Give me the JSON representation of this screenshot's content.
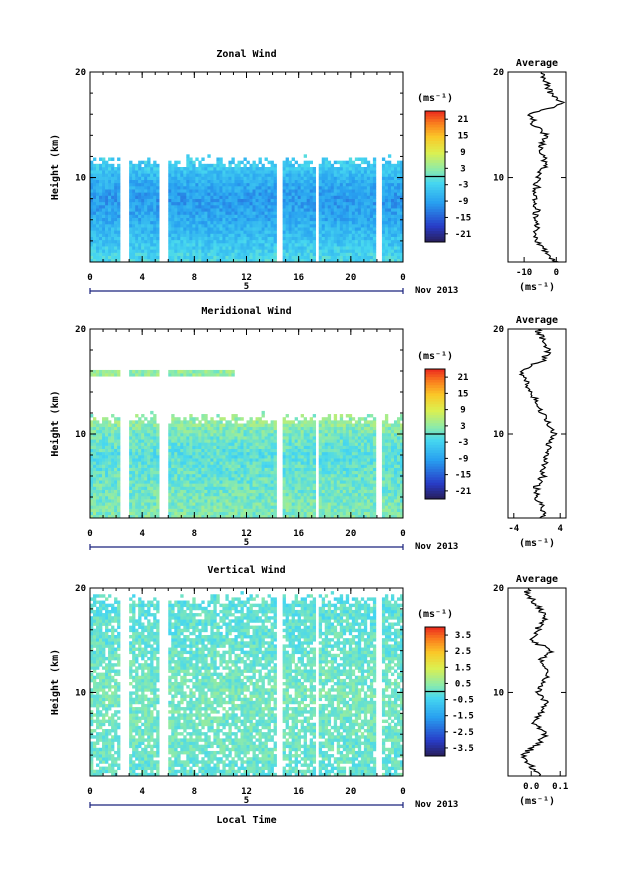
{
  "chart_data": [
    {
      "type": "heatmap",
      "title": "Zonal Wind",
      "ylabel": "Height (km)",
      "xlabel": "",
      "ylim": [
        2,
        20
      ],
      "xlim": [
        0,
        24
      ],
      "x_ticks": [
        "0",
        "4",
        "8",
        "12",
        "16",
        "20",
        "0"
      ],
      "y_ticks": [
        "10",
        "20"
      ],
      "date_label": "5",
      "month_label": "Nov 2013",
      "colorbar": {
        "unit": "(ms⁻¹)",
        "ticks": [
          "21",
          "15",
          "9",
          "3",
          "-3",
          "-9",
          "-15",
          "-21"
        ],
        "range": [
          -24,
          24
        ]
      },
      "data_gaps_hours": [
        [
          2.3,
          2.9
        ],
        [
          5.4,
          5.9
        ],
        [
          14.3,
          14.8
        ],
        [
          17.2,
          17.5
        ],
        [
          22.0,
          22.4
        ]
      ],
      "coverage_top_km": 11.5,
      "approx_field": {
        "height_km": [
          2,
          4,
          6,
          8,
          10,
          11
        ],
        "mean_value": [
          -2,
          -5,
          -8,
          -10,
          -7,
          -4
        ]
      },
      "profile": {
        "title": "Average",
        "x_ticks": [
          "-10",
          "0"
        ],
        "xlim": [
          -15,
          3
        ],
        "xlabel": "(ms⁻¹)",
        "y_ticks": [
          "10",
          "20"
        ],
        "height_km": [
          2,
          3,
          4,
          5,
          6,
          7,
          8,
          9,
          10,
          11,
          12,
          13,
          14,
          15,
          16,
          17,
          18,
          19,
          20
        ],
        "values": [
          0,
          -3,
          -6,
          -6,
          -7,
          -6,
          -7,
          -6,
          -6,
          -4,
          -4,
          -5,
          -3,
          -7,
          -8,
          2,
          -2,
          -3,
          -5
        ]
      }
    },
    {
      "type": "heatmap",
      "title": "Meridional Wind",
      "ylabel": "Height (km)",
      "xlabel": "",
      "ylim": [
        2,
        20
      ],
      "xlim": [
        0,
        24
      ],
      "x_ticks": [
        "0",
        "4",
        "8",
        "12",
        "16",
        "20",
        "0"
      ],
      "y_ticks": [
        "10",
        "20"
      ],
      "date_label": "5",
      "month_label": "Nov 2013",
      "colorbar": {
        "unit": "(ms⁻¹)",
        "ticks": [
          "21",
          "15",
          "9",
          "3",
          "-3",
          "-9",
          "-15",
          "-21"
        ],
        "range": [
          -24,
          24
        ]
      },
      "data_gaps_hours": [
        [
          2.3,
          2.9
        ],
        [
          5.4,
          5.9
        ],
        [
          14.3,
          14.8
        ],
        [
          17.2,
          17.5
        ],
        [
          22.0,
          22.4
        ]
      ],
      "coverage_top_km": 11.5,
      "approx_field": {
        "height_km": [
          2,
          4,
          6,
          8,
          10,
          11
        ],
        "mean_value": [
          2,
          1,
          0,
          -1,
          1,
          3
        ]
      },
      "profile": {
        "title": "Average",
        "x_ticks": [
          "-4",
          "4"
        ],
        "xlim": [
          -5,
          5
        ],
        "xlabel": "(ms⁻¹)",
        "y_ticks": [
          "10",
          "20"
        ],
        "height_km": [
          2,
          3,
          4,
          5,
          6,
          7,
          8,
          9,
          10,
          11,
          12,
          13,
          14,
          15,
          16,
          17,
          18,
          19,
          20
        ],
        "values": [
          1,
          1,
          0,
          0,
          1,
          1,
          2,
          2,
          3,
          2,
          1,
          0,
          -1,
          -2,
          -3,
          1,
          2,
          1,
          0
        ]
      }
    },
    {
      "type": "heatmap",
      "title": "Vertical Wind",
      "ylabel": "Height (km)",
      "xlabel": "Local Time",
      "ylim": [
        2,
        20
      ],
      "xlim": [
        0,
        24
      ],
      "x_ticks": [
        "0",
        "4",
        "8",
        "12",
        "16",
        "20",
        "0"
      ],
      "y_ticks": [
        "10",
        "20"
      ],
      "date_label": "5",
      "month_label": "Nov 2013",
      "colorbar": {
        "unit": "(ms⁻¹)",
        "ticks": [
          "3.5",
          "2.5",
          "1.5",
          "0.5",
          "-0.5",
          "-1.5",
          "-2.5",
          "-3.5"
        ],
        "range": [
          -4,
          4
        ]
      },
      "data_gaps_hours": [
        [
          2.3,
          2.9
        ],
        [
          5.4,
          5.9
        ],
        [
          14.3,
          14.8
        ],
        [
          17.2,
          17.5
        ],
        [
          22.0,
          22.4
        ]
      ],
      "coverage_top_km": 19,
      "approx_field": {
        "height_km": [
          2,
          6,
          10,
          14,
          18
        ],
        "mean_value": [
          0.0,
          0.1,
          0.2,
          0.0,
          -0.1
        ]
      },
      "profile": {
        "title": "Average",
        "x_ticks": [
          "0.0",
          "0.1"
        ],
        "xlim": [
          -0.08,
          0.12
        ],
        "xlabel": "(ms⁻¹)",
        "y_ticks": [
          "10",
          "20"
        ],
        "height_km": [
          2,
          3,
          4,
          5,
          6,
          7,
          8,
          9,
          10,
          11,
          12,
          13,
          14,
          15,
          16,
          17,
          18,
          19,
          20
        ],
        "values": [
          0.03,
          0.0,
          -0.03,
          0.02,
          0.05,
          0.01,
          0.03,
          0.05,
          0.02,
          0.04,
          0.06,
          0.03,
          0.07,
          0.0,
          0.02,
          0.05,
          0.03,
          0.0,
          -0.02
        ]
      }
    }
  ]
}
